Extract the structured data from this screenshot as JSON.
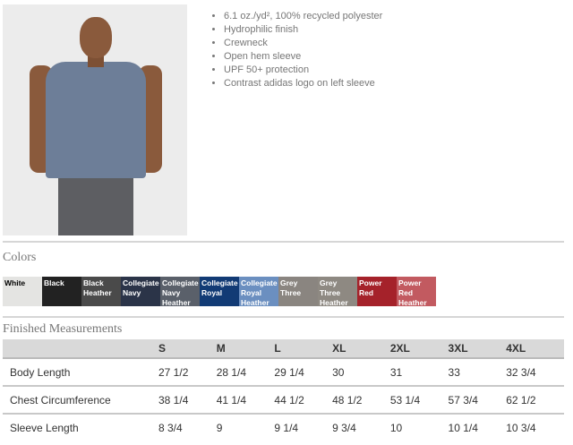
{
  "features": [
    "6.1 oz./yd², 100% recycled polyester",
    "Hydrophilic finish",
    "Crewneck",
    "Open hem sleeve",
    "UPF 50+ protection",
    "Contrast adidas logo on left sleeve"
  ],
  "colors_title": "Colors",
  "colors": [
    {
      "name": "White",
      "hex": "#e4e4e2",
      "text": "#000"
    },
    {
      "name": "Black",
      "hex": "#222222",
      "text": "#fff"
    },
    {
      "name": "Black Heather",
      "hex": "#4a4a4a",
      "text": "#fff"
    },
    {
      "name": "Collegiate Navy",
      "hex": "#2b3448",
      "text": "#fff"
    },
    {
      "name": "Collegiate Navy Heather",
      "hex": "#5a606a",
      "text": "#fff"
    },
    {
      "name": "Collegiate Royal",
      "hex": "#123b75",
      "text": "#fff"
    },
    {
      "name": "Collegiate Royal Heather",
      "hex": "#6b8fc0",
      "text": "#fff"
    },
    {
      "name": "Grey Three",
      "hex": "#8a8580",
      "text": "#fff"
    },
    {
      "name": "Grey Three Heather",
      "hex": "#8e8982",
      "text": "#fff"
    },
    {
      "name": "Power Red",
      "hex": "#a5222a",
      "text": "#fff"
    },
    {
      "name": "Power Red Heather",
      "hex": "#c25a60",
      "text": "#fff"
    }
  ],
  "measurements_title": "Finished Measurements",
  "sizes": [
    "S",
    "M",
    "L",
    "XL",
    "2XL",
    "3XL",
    "4XL"
  ],
  "rows": [
    {
      "label": "Body Length",
      "values": [
        "27 1/2",
        "28 1/4",
        "29 1/4",
        "30",
        "31",
        "33",
        "32 3/4"
      ]
    },
    {
      "label": "Chest Circumference",
      "values": [
        "38 1/4",
        "41 1/4",
        "44 1/2",
        "48 1/2",
        "53 1/4",
        "57 3/4",
        "62 1/2"
      ]
    },
    {
      "label": "Sleeve Length",
      "values": [
        "8 3/4",
        "9",
        "9 1/4",
        "9 3/4",
        "10",
        "10 1/4",
        "10 3/4"
      ]
    }
  ]
}
